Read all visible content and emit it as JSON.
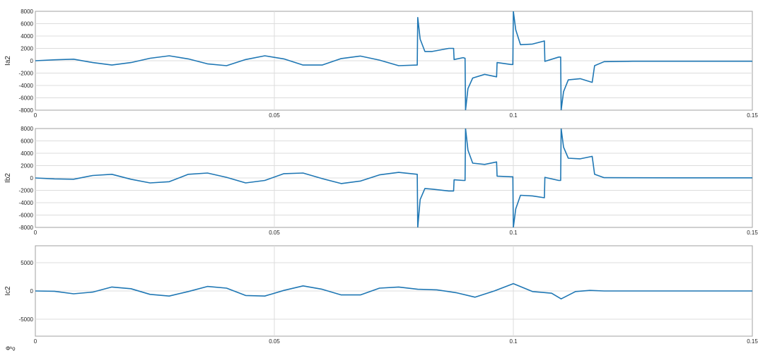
{
  "figure": {
    "background": "#ffffff",
    "line_color": "#1f77b4"
  },
  "chart_data": [
    {
      "type": "line",
      "ylabel": "Ia2",
      "xlim": [
        0,
        0.15
      ],
      "ylim": [
        -8000,
        8000
      ],
      "x_ticks": [
        "0",
        "0.05",
        "0.1",
        "0.15"
      ],
      "y_ticks": [
        "8000",
        "6000",
        "4000",
        "2000",
        "0",
        "-2000",
        "-4000",
        "-6000",
        "-8000"
      ],
      "grid": true,
      "series": [
        {
          "x": [
            0,
            0.004,
            0.008,
            0.012,
            0.016,
            0.02,
            0.024,
            0.028,
            0.032,
            0.036,
            0.04,
            0.044,
            0.048,
            0.052,
            0.056,
            0.06,
            0.064,
            0.068,
            0.072,
            0.076,
            0.0799,
            0.08,
            0.0805,
            0.0815,
            0.083,
            0.0865,
            0.0875,
            0.0876,
            0.0895,
            0.0899,
            0.09,
            0.0905,
            0.0915,
            0.094,
            0.0965,
            0.0966,
            0.0995,
            0.0999,
            0.1,
            0.1005,
            0.1015,
            0.104,
            0.1065,
            0.1066,
            0.1095,
            0.1099,
            0.11,
            0.1105,
            0.1115,
            0.114,
            0.1165,
            0.117,
            0.119,
            0.125,
            0.135,
            0.15
          ],
          "y": [
            0,
            150,
            250,
            -300,
            -700,
            -300,
            400,
            800,
            300,
            -500,
            -800,
            200,
            800,
            300,
            -700,
            -700,
            350,
            750,
            100,
            -800,
            -700,
            7000,
            3500,
            1500,
            1500,
            2000,
            2000,
            200,
            500,
            400,
            -8000,
            -4500,
            -2800,
            -2200,
            -2600,
            -300,
            -600,
            -600,
            8000,
            5000,
            2600,
            2700,
            3200,
            -100,
            600,
            600,
            -8000,
            -5000,
            -3100,
            -2900,
            -3500,
            -800,
            -150,
            -80,
            -80,
            -80
          ]
        }
      ]
    },
    {
      "type": "line",
      "ylabel": "Ib2",
      "xlim": [
        0,
        0.15
      ],
      "ylim": [
        -8000,
        8000
      ],
      "x_ticks": [
        "0",
        "0.05",
        "0.1",
        "0.15"
      ],
      "y_ticks": [
        "8000",
        "6000",
        "4000",
        "2000",
        "0",
        "-2000",
        "-4000",
        "-6000",
        "-8000"
      ],
      "grid": true,
      "series": [
        {
          "x": [
            0,
            0.004,
            0.008,
            0.012,
            0.016,
            0.02,
            0.024,
            0.028,
            0.032,
            0.036,
            0.04,
            0.044,
            0.048,
            0.052,
            0.056,
            0.06,
            0.064,
            0.068,
            0.072,
            0.076,
            0.0799,
            0.08,
            0.0805,
            0.0815,
            0.083,
            0.0865,
            0.0875,
            0.0876,
            0.0895,
            0.0899,
            0.09,
            0.0905,
            0.0915,
            0.094,
            0.0965,
            0.0966,
            0.0995,
            0.0999,
            0.1,
            0.1005,
            0.1015,
            0.104,
            0.1065,
            0.1066,
            0.1095,
            0.1099,
            0.11,
            0.1105,
            0.1115,
            0.114,
            0.1165,
            0.117,
            0.119,
            0.125,
            0.135,
            0.15
          ],
          "y": [
            0,
            -150,
            -200,
            400,
            600,
            -200,
            -800,
            -600,
            600,
            800,
            100,
            -800,
            -400,
            700,
            800,
            -100,
            -900,
            -500,
            500,
            900,
            600,
            -8000,
            -3500,
            -1700,
            -1800,
            -2100,
            -2100,
            -300,
            -400,
            -400,
            8000,
            4500,
            2400,
            2200,
            2600,
            300,
            200,
            200,
            -8000,
            -5000,
            -2800,
            -2900,
            -3200,
            100,
            -400,
            -400,
            8000,
            5000,
            3200,
            3100,
            3500,
            600,
            50,
            30,
            20,
            20
          ]
        }
      ]
    },
    {
      "type": "line",
      "ylabel": "Ic2",
      "xlim": [
        0,
        0.15
      ],
      "ylim": [
        -8000,
        8000
      ],
      "x_ticks": [
        "0",
        "0.05",
        "0.1",
        "0.15"
      ],
      "y_ticks": [
        "5000",
        "0",
        "-5000"
      ],
      "grid": true,
      "series": [
        {
          "x": [
            0,
            0.004,
            0.008,
            0.012,
            0.016,
            0.02,
            0.024,
            0.028,
            0.032,
            0.036,
            0.04,
            0.044,
            0.048,
            0.052,
            0.056,
            0.06,
            0.064,
            0.068,
            0.072,
            0.076,
            0.08,
            0.084,
            0.088,
            0.092,
            0.096,
            0.1,
            0.104,
            0.108,
            0.11,
            0.113,
            0.116,
            0.119,
            0.125,
            0.135,
            0.15
          ],
          "y": [
            0,
            -50,
            -500,
            -200,
            700,
            400,
            -600,
            -900,
            -100,
            800,
            500,
            -800,
            -900,
            100,
            900,
            300,
            -700,
            -700,
            500,
            700,
            300,
            200,
            -300,
            -1100,
            0,
            1300,
            -100,
            -400,
            -1400,
            -100,
            100,
            0,
            0,
            0,
            0
          ]
        }
      ]
    }
  ],
  "partial_text": "Φᵏǫ"
}
